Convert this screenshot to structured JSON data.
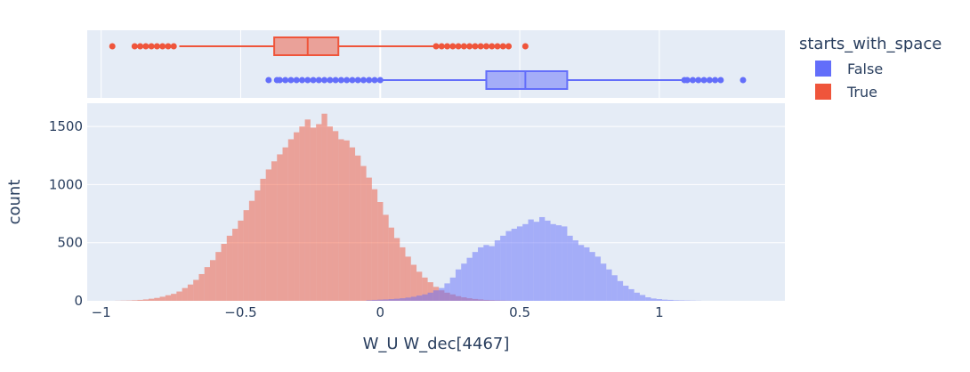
{
  "chart_data": {
    "type": "histogram",
    "xlabel": "W_U W_dec[4467]",
    "ylabel": "count",
    "xlim": [
      -1.05,
      1.45
    ],
    "ylim": [
      0,
      1700
    ],
    "x_ticks": [
      -1,
      -0.5,
      0,
      0.5,
      1
    ],
    "x_tick_labels": [
      "−1",
      "−0.5",
      "0",
      "0.5",
      "1"
    ],
    "y_ticks": [
      0,
      500,
      1000,
      1500
    ],
    "y_tick_labels": [
      "0",
      "500",
      "1000",
      "1500"
    ],
    "bin_width": 0.02,
    "grid": true,
    "legend": {
      "title": "starts_with_space",
      "placement": "right",
      "entries": [
        {
          "name": "False",
          "color": "#636efa"
        },
        {
          "name": "True",
          "color": "#ef553b"
        }
      ]
    },
    "series": [
      {
        "name": "False",
        "color": "#636efa",
        "bin_start": -0.05,
        "counts": [
          5,
          8,
          10,
          12,
          15,
          18,
          22,
          28,
          35,
          45,
          55,
          70,
          90,
          110,
          150,
          200,
          270,
          320,
          370,
          420,
          460,
          480,
          470,
          520,
          560,
          600,
          620,
          640,
          660,
          700,
          680,
          720,
          690,
          660,
          650,
          640,
          560,
          520,
          480,
          460,
          420,
          380,
          320,
          270,
          220,
          170,
          130,
          100,
          70,
          50,
          30,
          20,
          15,
          10,
          8,
          5,
          4,
          3,
          2,
          1
        ],
        "box": {
          "min": -0.34,
          "q1": 0.38,
          "median": 0.52,
          "q3": 0.67,
          "max": 1.08
        },
        "outliers": [
          -0.36,
          -0.34,
          -0.32,
          -0.3,
          -0.28,
          -0.26,
          -0.24,
          -0.22,
          -0.2,
          -0.18,
          -0.16,
          -0.14,
          -0.12,
          -0.1,
          -0.08,
          -0.06,
          -0.04,
          -0.02,
          0,
          -0.37,
          -0.4,
          1.09,
          1.1,
          1.12,
          1.14,
          1.16,
          1.18,
          1.2,
          1.22,
          1.3
        ]
      },
      {
        "name": "True",
        "color": "#ef553b",
        "bin_start": -0.95,
        "counts": [
          1,
          2,
          3,
          5,
          8,
          12,
          18,
          25,
          35,
          48,
          60,
          80,
          110,
          140,
          180,
          230,
          290,
          350,
          420,
          490,
          560,
          620,
          690,
          780,
          860,
          950,
          1050,
          1130,
          1200,
          1260,
          1320,
          1390,
          1450,
          1500,
          1560,
          1490,
          1520,
          1610,
          1500,
          1460,
          1390,
          1380,
          1320,
          1250,
          1160,
          1060,
          960,
          850,
          740,
          630,
          540,
          460,
          380,
          310,
          250,
          200,
          160,
          120,
          90,
          70,
          55,
          40,
          30,
          22,
          16,
          12,
          8,
          6,
          4,
          3,
          2,
          1
        ],
        "box": {
          "min": -0.72,
          "q1": -0.38,
          "median": -0.26,
          "q3": -0.15,
          "max": 0.19
        },
        "outliers": [
          -0.96,
          -0.88,
          -0.86,
          -0.84,
          -0.82,
          -0.8,
          -0.78,
          -0.76,
          -0.74,
          0.2,
          0.22,
          0.24,
          0.26,
          0.28,
          0.3,
          0.32,
          0.34,
          0.36,
          0.38,
          0.4,
          0.42,
          0.44,
          0.46,
          0.52
        ]
      }
    ],
    "overlap_color": "#8a4a86"
  }
}
